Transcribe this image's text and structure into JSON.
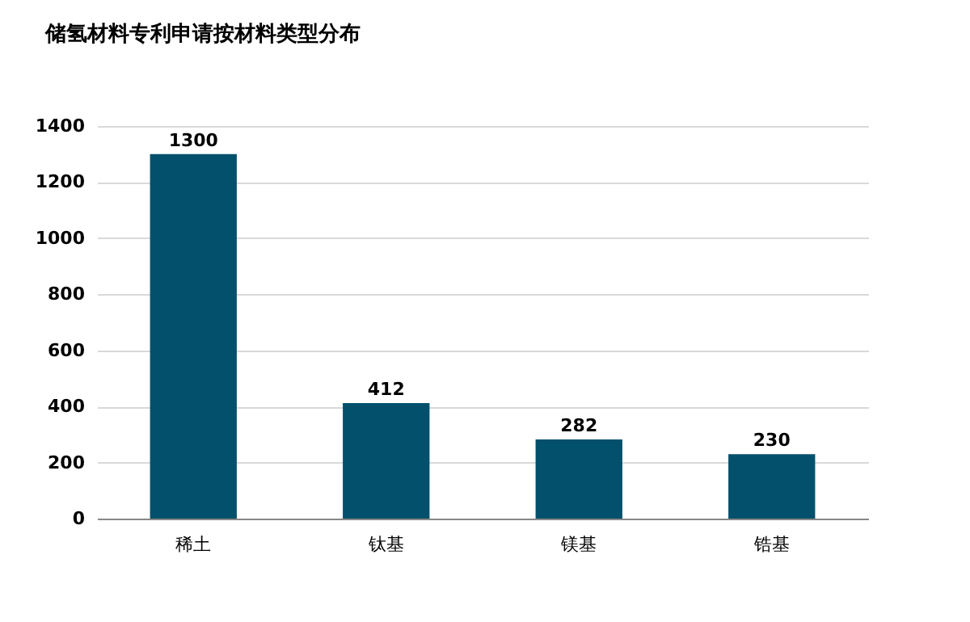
{
  "chart_data": {
    "type": "bar",
    "title": "储氢材料专利申请按材料类型分布",
    "categories": [
      "稀土",
      "钛基",
      "镁基",
      "锆基"
    ],
    "values": [
      1300,
      412,
      282,
      230
    ],
    "color": "#02506b",
    "ylim": [
      0,
      1400
    ],
    "yticks": [
      0,
      200,
      400,
      600,
      800,
      1000,
      1200,
      1400
    ],
    "grid": "y",
    "data_labels": true
  }
}
